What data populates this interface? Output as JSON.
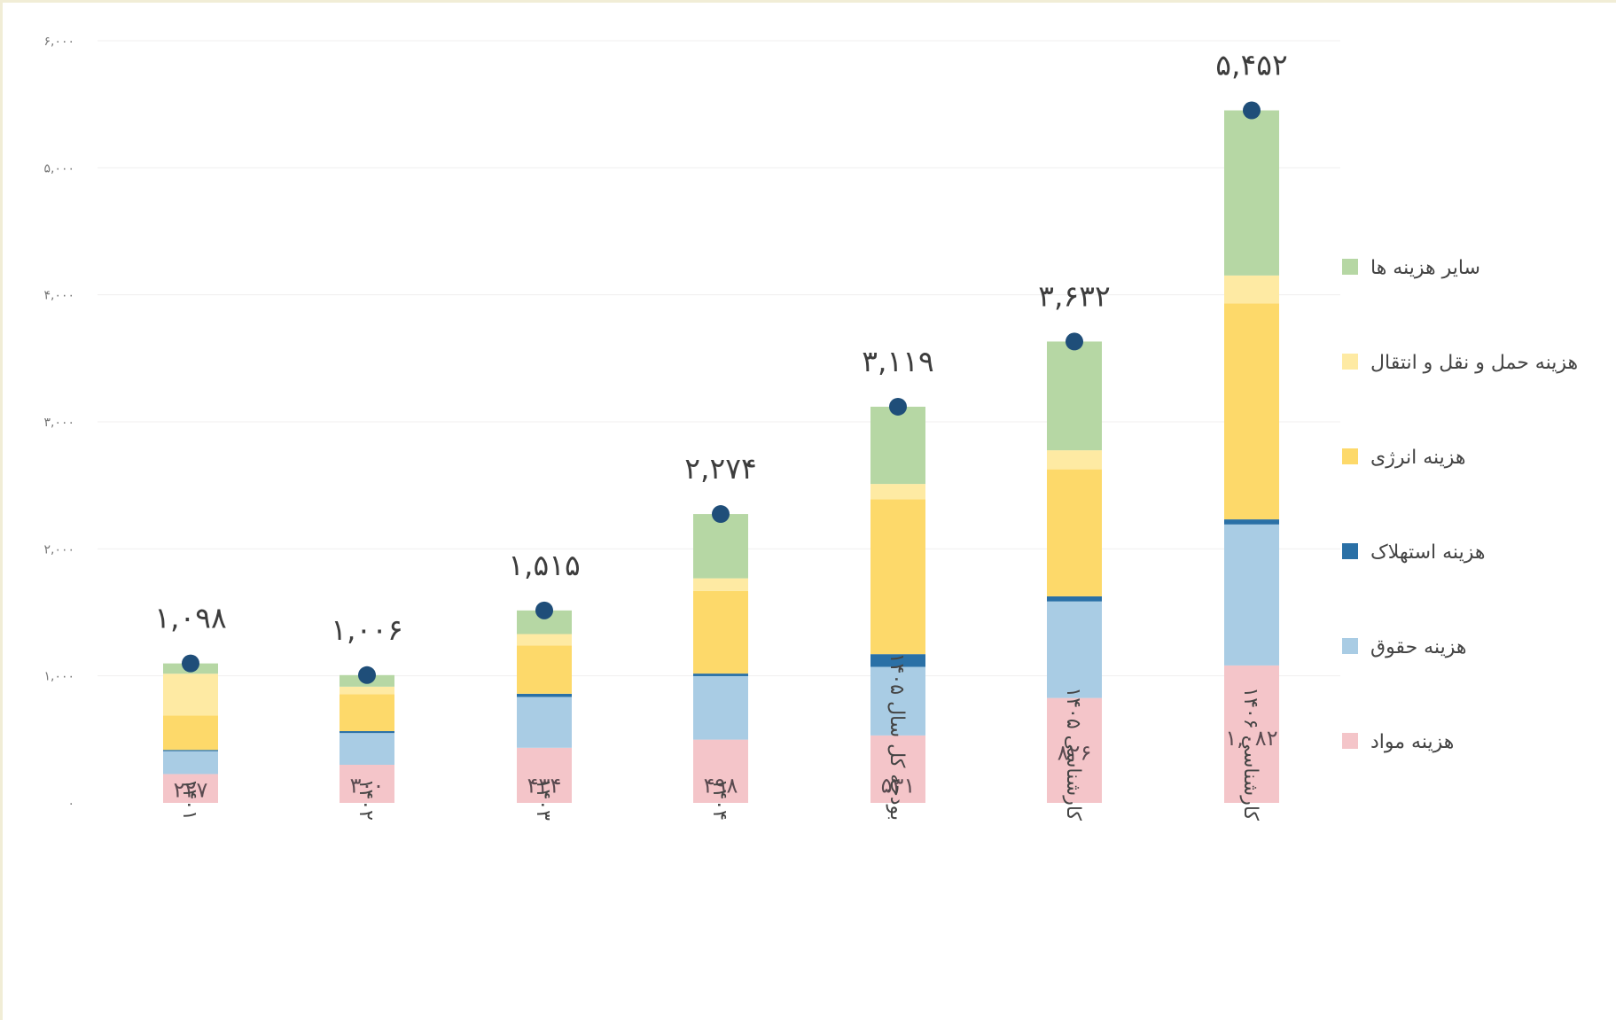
{
  "chart_data": {
    "type": "bar",
    "stacked": true,
    "categories": [
      "۱۴۰۱",
      "۱۴۰۲",
      "۱۴۰۳",
      "۱۴۰۴",
      "بودجه کل سال ۱۴۰۵",
      "کارشناسی ۱۴۰۵",
      "کارشناسی ۱۴۰۶"
    ],
    "totals": [
      1098,
      1006,
      1515,
      2274,
      3119,
      3632,
      5452
    ],
    "total_labels": [
      "۱,۰۹۸",
      "۱,۰۰۶",
      "۱,۵۱۵",
      "۲,۲۷۴",
      "۳,۱۱۹",
      "۳,۶۳۲",
      "۵,۴۵۲"
    ],
    "ylim": [
      0,
      6000
    ],
    "yticks": [
      0,
      1000,
      2000,
      3000,
      4000,
      5000,
      6000
    ],
    "ytick_labels": [
      "۰",
      "۱,۰۰۰",
      "۲,۰۰۰",
      "۳,۰۰۰",
      "۴,۰۰۰",
      "۵,۰۰۰",
      "۶,۰۰۰"
    ],
    "series": [
      {
        "name": "هزینه مواد",
        "color": "#f4c5c9",
        "values": [
          227,
          300,
          434,
          498,
          531,
          826,
          1082
        ],
        "labels": [
          "۲۲۷",
          "۳۰۰",
          "۴۳۴",
          "۴۹۸",
          "۵۳۱",
          "۸۲۶",
          "۱,۰۸۲"
        ]
      },
      {
        "name": "هزینه حقوق",
        "color": "#a9cce4",
        "values": [
          180,
          250,
          400,
          500,
          540,
          760,
          1110
        ]
      },
      {
        "name": "هزینه استهلاک",
        "color": "#2a70a6",
        "values": [
          10,
          15,
          25,
          20,
          100,
          40,
          40
        ]
      },
      {
        "name": "هزینه انرژی",
        "color": "#fdd96a",
        "values": [
          270,
          290,
          380,
          650,
          1220,
          1000,
          1700
        ]
      },
      {
        "name": "هزینه حمل و نقل و انتقال",
        "color": "#feeaa3",
        "values": [
          330,
          60,
          90,
          100,
          120,
          150,
          220
        ]
      },
      {
        "name": "سایر هزینه ها",
        "color": "#b6d7a4",
        "values": [
          81,
          91,
          186,
          506,
          608,
          856,
          1300
        ]
      }
    ],
    "total_marker_color": "#1f4e79",
    "legend_position": "right",
    "grid": true
  }
}
